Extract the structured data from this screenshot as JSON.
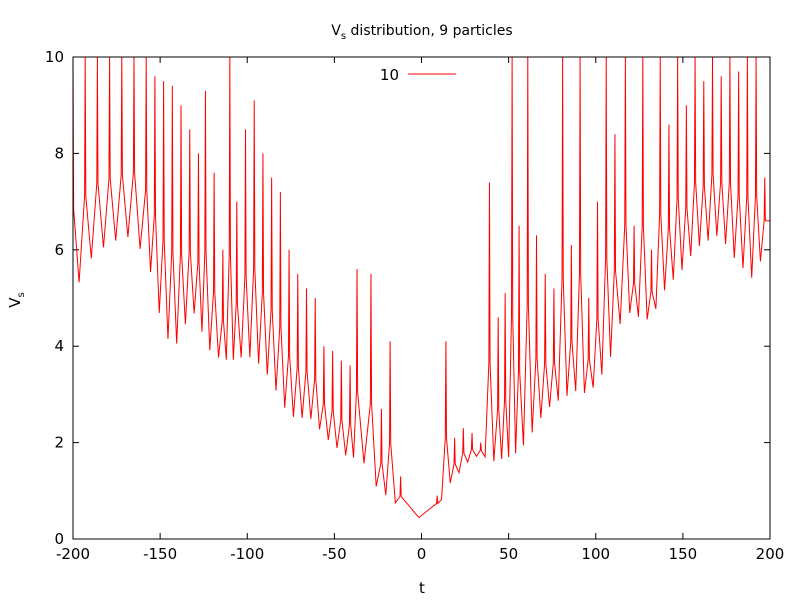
{
  "chart_data": {
    "type": "line",
    "title": "V",
    "title_subscript": "s",
    "title_rest": " distribution, 9 particles",
    "xlabel": "t",
    "ylabel": "V",
    "ylabel_subscript": "s",
    "xlim": [
      -200,
      200
    ],
    "ylim": [
      0,
      10
    ],
    "xticks": [
      -200,
      -150,
      -100,
      -50,
      0,
      50,
      100,
      150,
      200
    ],
    "yticks": [
      0,
      2,
      4,
      6,
      8,
      10
    ],
    "grid": false,
    "legend_position": "top-center",
    "series": [
      {
        "name": "10",
        "color": "#ff0000",
        "baseline": [
          [
            -200,
            5.15
          ],
          [
            -195,
            5.4
          ],
          [
            -190,
            5.8
          ],
          [
            -185,
            6.0
          ],
          [
            -180,
            6.1
          ],
          [
            -175,
            6.2
          ],
          [
            -170,
            6.25
          ],
          [
            -165,
            6.3
          ],
          [
            -160,
            5.9
          ],
          [
            -155,
            5.5
          ],
          [
            -150,
            4.6
          ],
          [
            -145,
            4.1
          ],
          [
            -140,
            4.05
          ],
          [
            -135,
            4.5
          ],
          [
            -130,
            4.7
          ],
          [
            -125,
            4.2
          ],
          [
            -120,
            3.8
          ],
          [
            -115,
            3.75
          ],
          [
            -110,
            3.7
          ],
          [
            -105,
            3.75
          ],
          [
            -100,
            3.8
          ],
          [
            -95,
            3.7
          ],
          [
            -90,
            3.5
          ],
          [
            -85,
            3.2
          ],
          [
            -80,
            2.8
          ],
          [
            -75,
            2.55
          ],
          [
            -70,
            2.5
          ],
          [
            -65,
            2.55
          ],
          [
            -60,
            2.35
          ],
          [
            -55,
            2.1
          ],
          [
            -50,
            1.95
          ],
          [
            -45,
            1.75
          ],
          [
            -40,
            1.7
          ],
          [
            -35,
            1.65
          ],
          [
            -30,
            1.45
          ],
          [
            -25,
            1.0
          ],
          [
            -20,
            0.9
          ],
          [
            -15,
            0.75
          ],
          [
            -10,
            0.6
          ],
          [
            -5,
            0.5
          ],
          [
            0,
            0.42
          ],
          [
            5,
            0.45
          ],
          [
            10,
            0.7
          ],
          [
            15,
            1.1
          ],
          [
            20,
            1.3
          ],
          [
            25,
            1.55
          ],
          [
            30,
            1.7
          ],
          [
            35,
            1.75
          ],
          [
            40,
            1.6
          ],
          [
            45,
            1.65
          ],
          [
            50,
            1.7
          ],
          [
            55,
            1.8
          ],
          [
            60,
            2.0
          ],
          [
            65,
            2.3
          ],
          [
            70,
            2.6
          ],
          [
            75,
            2.8
          ],
          [
            80,
            2.9
          ],
          [
            85,
            3.0
          ],
          [
            90,
            3.1
          ],
          [
            95,
            3.0
          ],
          [
            100,
            3.2
          ],
          [
            105,
            3.5
          ],
          [
            110,
            3.9
          ],
          [
            115,
            4.6
          ],
          [
            120,
            4.7
          ],
          [
            125,
            4.6
          ],
          [
            130,
            4.55
          ],
          [
            135,
            4.8
          ],
          [
            140,
            5.2
          ],
          [
            145,
            5.4
          ],
          [
            150,
            5.6
          ],
          [
            155,
            5.9
          ],
          [
            160,
            6.1
          ],
          [
            165,
            6.2
          ],
          [
            170,
            6.3
          ],
          [
            175,
            6.1
          ],
          [
            180,
            5.8
          ],
          [
            185,
            5.6
          ],
          [
            190,
            5.4
          ],
          [
            195,
            5.8
          ],
          [
            200,
            6.6
          ]
        ],
        "peaks": [
          [
            -200,
            10
          ],
          [
            -193,
            10
          ],
          [
            -186,
            10
          ],
          [
            -179,
            10
          ],
          [
            -172,
            10
          ],
          [
            -165,
            10
          ],
          [
            -158,
            10
          ],
          [
            -153,
            9.6
          ],
          [
            -148,
            9.5
          ],
          [
            -143,
            9.4
          ],
          [
            -138,
            9.0
          ],
          [
            -133,
            8.5
          ],
          [
            -128,
            8.0
          ],
          [
            -124,
            9.3
          ],
          [
            -119,
            7.6
          ],
          [
            -114,
            6.0
          ],
          [
            -110,
            10
          ],
          [
            -106,
            7.0
          ],
          [
            -101,
            8.5
          ],
          [
            -96,
            9.1
          ],
          [
            -91,
            8.0
          ],
          [
            -86,
            7.5
          ],
          [
            -81,
            7.2
          ],
          [
            -76,
            6.0
          ],
          [
            -71,
            5.5
          ],
          [
            -66,
            5.2
          ],
          [
            -61,
            5.0
          ],
          [
            -56,
            4.0
          ],
          [
            -51,
            3.9
          ],
          [
            -46,
            3.7
          ],
          [
            -41,
            3.6
          ],
          [
            -37,
            5.6
          ],
          [
            -29,
            5.5
          ],
          [
            -23,
            2.7
          ],
          [
            -18,
            4.1
          ],
          [
            -12,
            1.3
          ],
          [
            9,
            0.9
          ],
          [
            14,
            4.1
          ],
          [
            19,
            2.1
          ],
          [
            24,
            2.3
          ],
          [
            29,
            2.2
          ],
          [
            34,
            2.0
          ],
          [
            39,
            7.4
          ],
          [
            44,
            4.6
          ],
          [
            48,
            5.1
          ],
          [
            52,
            10
          ],
          [
            56,
            6.5
          ],
          [
            61,
            10
          ],
          [
            66,
            6.3
          ],
          [
            71,
            5.5
          ],
          [
            76,
            5.2
          ],
          [
            81,
            10
          ],
          [
            86,
            6.1
          ],
          [
            91,
            10
          ],
          [
            96,
            5.0
          ],
          [
            101,
            7.0
          ],
          [
            106,
            10
          ],
          [
            111,
            8.4
          ],
          [
            117,
            10
          ],
          [
            122,
            6.5
          ],
          [
            127,
            10
          ],
          [
            132,
            6.0
          ],
          [
            137,
            10
          ],
          [
            142,
            8.6
          ],
          [
            147,
            10
          ],
          [
            152,
            9.0
          ],
          [
            157,
            10
          ],
          [
            162,
            9.5
          ],
          [
            167,
            10
          ],
          [
            172,
            9.6
          ],
          [
            177,
            10
          ],
          [
            182,
            9.7
          ],
          [
            187,
            10
          ],
          [
            192,
            10
          ],
          [
            197,
            7.5
          ]
        ]
      }
    ]
  }
}
